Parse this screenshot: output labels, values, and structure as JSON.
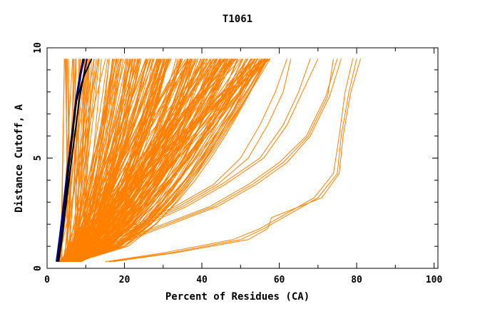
{
  "chart_data": {
    "type": "line",
    "title": "T1061",
    "xlabel": "Percent of Residues (CA)",
    "ylabel": "Distance Cutoff, A",
    "xlim": [
      0,
      101
    ],
    "ylim": [
      0,
      10
    ],
    "x_ticks": [
      "0",
      "20",
      "40",
      "60",
      "80",
      "100"
    ],
    "x_tick_values": [
      0,
      20,
      40,
      60,
      80,
      100
    ],
    "y_ticks": [
      "0",
      "5",
      "10"
    ],
    "y_tick_values": [
      0,
      5,
      10
    ],
    "colors": {
      "other_models": "#ff8000",
      "highlight_1": "#000080",
      "highlight_2": "#000000",
      "axis": "#000000"
    },
    "series": [
      {
        "group": "highlight",
        "color": "#000080",
        "x": [
          2.6,
          3.6,
          4.6,
          5.6,
          6.6,
          7.6,
          8.6,
          9.6
        ],
        "y": [
          0.3,
          1.5,
          3.0,
          4.6,
          6.1,
          7.6,
          8.7,
          9.5
        ]
      },
      {
        "group": "highlight",
        "color": "#000080",
        "x": [
          2.4,
          3.3,
          4.3,
          5.3,
          6.4,
          7.4,
          8.4,
          9.3
        ],
        "y": [
          0.3,
          1.5,
          3.0,
          4.6,
          6.1,
          7.6,
          8.7,
          9.5
        ]
      },
      {
        "group": "highlight",
        "color": "#000000",
        "x": [
          3.0,
          4.0,
          4.8,
          5.6,
          6.6,
          7.6,
          9.5,
          11.5
        ],
        "y": [
          0.3,
          1.5,
          3.0,
          4.6,
          6.1,
          7.6,
          8.7,
          9.5
        ]
      },
      {
        "group": "highlight",
        "color": "#000000",
        "x": [
          2.8,
          3.9,
          5.0,
          6.1,
          7.2,
          8.3,
          9.4,
          10.3
        ],
        "y": [
          0.3,
          1.5,
          3.0,
          4.6,
          6.1,
          7.6,
          8.7,
          9.5
        ]
      },
      {
        "group": "outlier",
        "color": "#ff8000",
        "x": [
          16,
          32,
          50,
          56,
          61,
          70,
          75,
          76,
          78,
          80
        ],
        "y": [
          0.3,
          0.7,
          1.3,
          1.8,
          2.3,
          3.2,
          4.3,
          6.0,
          8.0,
          9.5
        ]
      },
      {
        "group": "outlier",
        "color": "#ff8000",
        "x": [
          15,
          30,
          48,
          55,
          60,
          69,
          74,
          75.5,
          77,
          79
        ],
        "y": [
          0.3,
          0.7,
          1.3,
          1.8,
          2.3,
          3.2,
          4.3,
          6.0,
          8.0,
          9.5
        ]
      },
      {
        "group": "outlier",
        "color": "#ff8000",
        "x": [
          17,
          33,
          52,
          57,
          58,
          71,
          75.5,
          76.5,
          78.5,
          81
        ],
        "y": [
          0.3,
          0.7,
          1.3,
          1.8,
          2.3,
          3.2,
          4.3,
          6.0,
          8.0,
          9.5
        ]
      },
      {
        "group": "outlier",
        "color": "#ff8000",
        "x": [
          6,
          18,
          30,
          42,
          52,
          60,
          67,
          72,
          75
        ],
        "y": [
          0.3,
          1.2,
          2.0,
          2.8,
          3.8,
          4.8,
          6.0,
          7.8,
          9.5
        ]
      },
      {
        "group": "outlier",
        "color": "#ff8000",
        "x": [
          7,
          20,
          32,
          44,
          54,
          62,
          68,
          73,
          76
        ],
        "y": [
          0.3,
          1.2,
          2.0,
          2.8,
          3.8,
          4.8,
          6.0,
          7.8,
          9.5
        ]
      },
      {
        "group": "outlier",
        "color": "#ff8000",
        "x": [
          6.5,
          19,
          31,
          43,
          53,
          61,
          67.5,
          72.5,
          74
        ],
        "y": [
          0.3,
          1.2,
          2.0,
          2.8,
          3.8,
          4.8,
          6.0,
          7.8,
          9.5
        ]
      },
      {
        "group": "outlier",
        "color": "#ff8000",
        "x": [
          5,
          15,
          25,
          35,
          45,
          55,
          61,
          65,
          68
        ],
        "y": [
          0.3,
          1.2,
          2.0,
          2.8,
          3.8,
          5.0,
          6.5,
          8.0,
          9.5
        ]
      },
      {
        "group": "outlier",
        "color": "#ff8000",
        "x": [
          5.5,
          16,
          26,
          36,
          46,
          56,
          62,
          66,
          70
        ],
        "y": [
          0.3,
          1.2,
          2.0,
          2.8,
          3.8,
          5.0,
          6.5,
          8.0,
          9.5
        ]
      },
      {
        "group": "outlier",
        "color": "#ff8000",
        "x": [
          5,
          14,
          24,
          34,
          44,
          52,
          57,
          61,
          63
        ],
        "y": [
          0.3,
          1.2,
          2.0,
          2.8,
          3.8,
          5.0,
          6.5,
          8.0,
          9.5
        ]
      },
      {
        "group": "outlier",
        "color": "#ff8000",
        "x": [
          4.5,
          13,
          23,
          33,
          43,
          50,
          55,
          59,
          62
        ],
        "y": [
          0.3,
          1.2,
          2.0,
          2.8,
          3.8,
          5.0,
          6.5,
          8.0,
          9.5
        ]
      }
    ],
    "bulk_models": {
      "color": "#ff8000",
      "start_x_range": [
        3,
        9
      ],
      "end_x_range": [
        4,
        58
      ],
      "x_at_y": [
        0.3,
        1.0,
        2.0,
        3.0,
        4.0,
        5.0,
        6.0,
        7.0,
        8.0,
        9.0,
        9.5
      ],
      "count": 260
    }
  }
}
